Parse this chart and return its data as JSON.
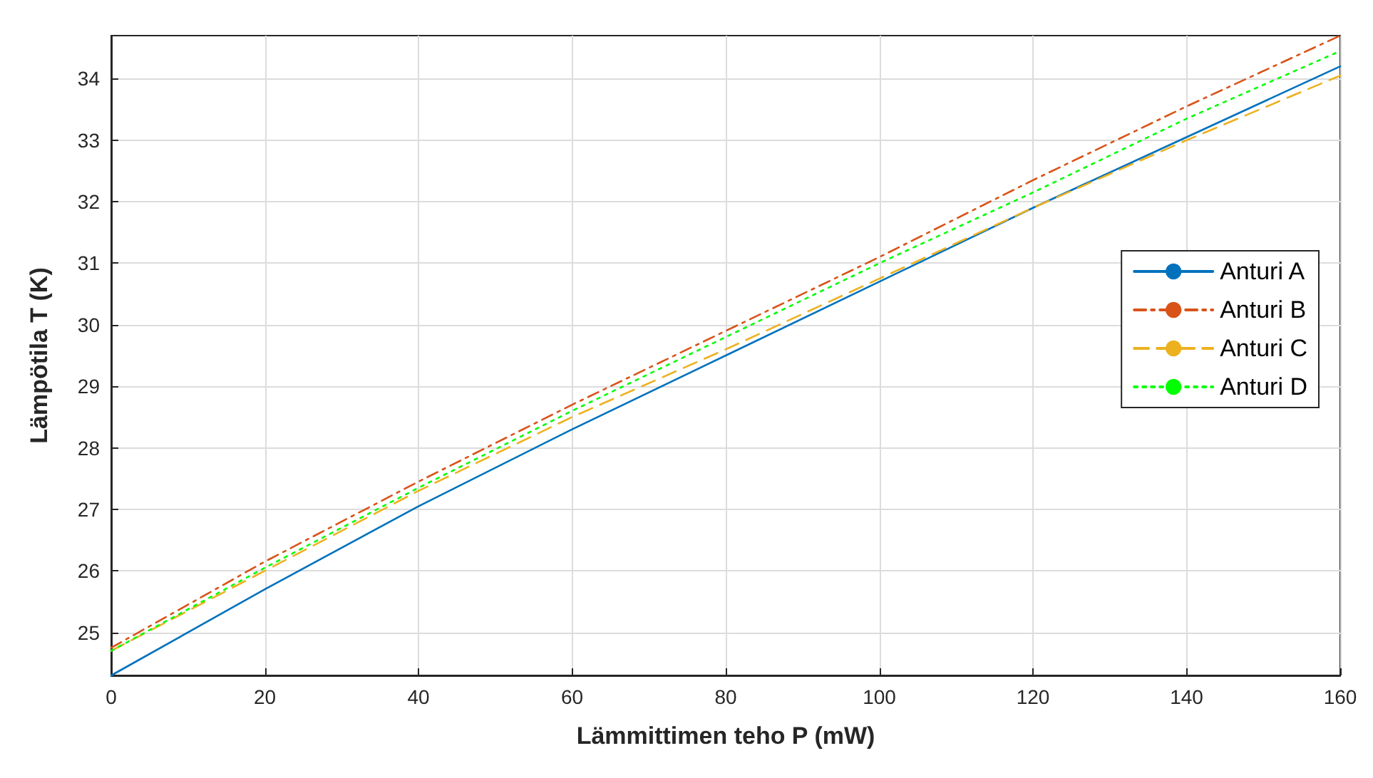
{
  "chart_data": {
    "type": "line",
    "xlabel": "Lämmittimen teho P (mW)",
    "ylabel": "Lämpötila T (K)",
    "x": [
      0,
      20,
      40,
      60,
      80,
      100,
      120,
      140,
      160
    ],
    "series": [
      {
        "name": "Anturi A",
        "color": "#0072bd",
        "line_style": "solid",
        "values": [
          24.3,
          25.7,
          27.05,
          28.3,
          29.5,
          30.7,
          31.9,
          33.05,
          34.2
        ]
      },
      {
        "name": "Anturi B",
        "color": "#d95319",
        "line_style": "dashdot",
        "values": [
          24.75,
          26.15,
          27.45,
          28.7,
          29.9,
          31.1,
          32.35,
          33.55,
          34.7
        ]
      },
      {
        "name": "Anturi C",
        "color": "#edb120",
        "line_style": "dashed",
        "values": [
          24.7,
          26.0,
          27.3,
          28.5,
          29.6,
          30.75,
          31.9,
          33.0,
          34.05
        ]
      },
      {
        "name": "Anturi D",
        "color": "#00ff00",
        "line_style": "dotted",
        "values": [
          24.7,
          26.05,
          27.35,
          28.6,
          29.8,
          31.0,
          32.15,
          33.35,
          34.45
        ]
      }
    ],
    "xlim": [
      0,
      160
    ],
    "xticks": [
      0,
      20,
      40,
      60,
      80,
      100,
      120,
      140,
      160
    ],
    "ylim": [
      24.3,
      34.7
    ],
    "yticks": [
      25,
      26,
      27,
      28,
      29,
      30,
      31,
      32,
      33,
      34
    ],
    "grid": true,
    "legend": "right",
    "marker": "none"
  }
}
